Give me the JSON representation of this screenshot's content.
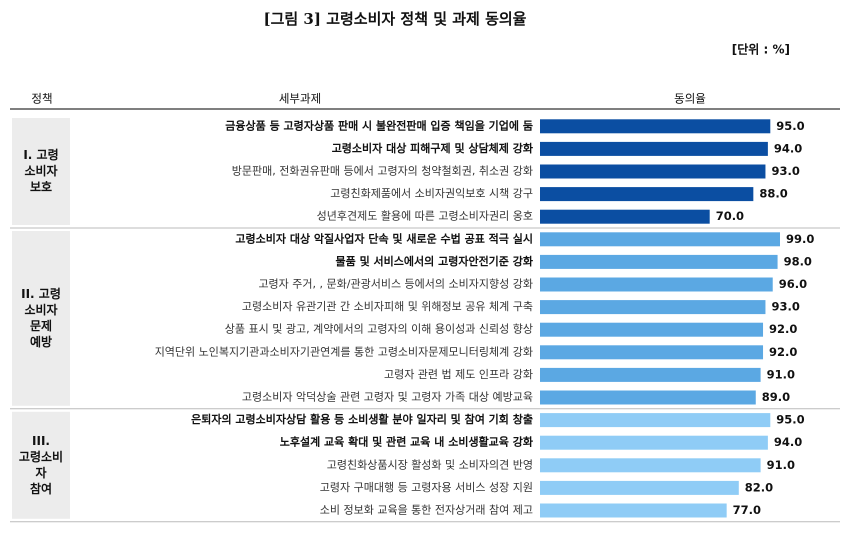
{
  "chart_data": {
    "type": "bar",
    "title": "[그림 3] 고령소비자 정책 및 과제 동의율",
    "unit_label": "[단위 : %]",
    "headers": [
      "정책",
      "세부과제",
      "동의율"
    ],
    "groups": [
      {
        "label_lines": [
          "I. 고령",
          "소비자",
          "보호"
        ],
        "color": "#0b4ea2",
        "categories": [
          "금융상품 등 고령자상품 판매 시 불완전판매 입증 책임을 기업에 둠",
          "고령소비자 대상 피해구제 및 상담체제 강화",
          "방문판매, 전화권유판매 등에서 고령자의 청약철회권, 취소권 강화",
          "고령친화제품에서 소비자권익보호 시책 강구",
          "성년후견제도 활용에 따른 고령소비자권리 옹호"
        ],
        "bold": [
          true,
          true,
          false,
          false,
          false
        ],
        "values": [
          95,
          94,
          93,
          88,
          70
        ],
        "value_labels": [
          "95.0",
          "94.0",
          "93.0",
          "88.0",
          "70.0"
        ]
      },
      {
        "label_lines": [
          "II. 고령",
          "소비자",
          "문제",
          "예방"
        ],
        "color": "#5ba8e3",
        "categories": [
          "고령소비자 대상 악질사업자 단속 및 새로운 수법 공표 적극 실시",
          "물품 및 서비스에서의 고령자안전기준 강화",
          "고령자 주거, , 문화/관광서비스 등에서의 소비자지향성 강화",
          "고령소비자 유관기관 간 소비자피해 및 위해정보 공유 체계 구축",
          "상품 표시 및 광고, 계약에서의 고령자의 이해 용이성과 신뢰성 향상",
          "지역단위 노인복지기관과소비자기관연계를 통한 고령소비자문제모니터링체계 강화",
          "고령자 관련 법 제도 인프라 강화",
          "고령소비자 악덕상술 관련 고령자 및 고령자 가족 대상 예방교육"
        ],
        "bold": [
          true,
          true,
          false,
          false,
          false,
          false,
          false,
          false
        ],
        "values": [
          99,
          98,
          96,
          93,
          92,
          92,
          91,
          89
        ],
        "value_labels": [
          "99.0",
          "98.0",
          "96.0",
          "93.0",
          "92.0",
          "92.0",
          "91.0",
          "89.0"
        ]
      },
      {
        "label_lines": [
          "III.",
          "고령소비",
          "자",
          "참여"
        ],
        "color": "#8fccf6",
        "categories": [
          "은퇴자의 고령소비자상담 활용 등 소비생활 분야 일자리 및 참여 기회 창출",
          "노후설계 교육 확대 및 관련 교육 내 소비생활교육 강화",
          "고령친화상품시장 활성화 및 소비자의견 반영",
          "고령자 구매대행 등 고령자용 서비스 성장 지원",
          "소비 정보화 교육을 통한 전자상거래 참여 제고"
        ],
        "bold": [
          true,
          true,
          false,
          false,
          false
        ],
        "values": [
          95,
          94,
          91,
          82,
          77
        ],
        "value_labels": [
          "95.0",
          "94.0",
          "91.0",
          "82.0",
          "77.0"
        ]
      }
    ]
  }
}
